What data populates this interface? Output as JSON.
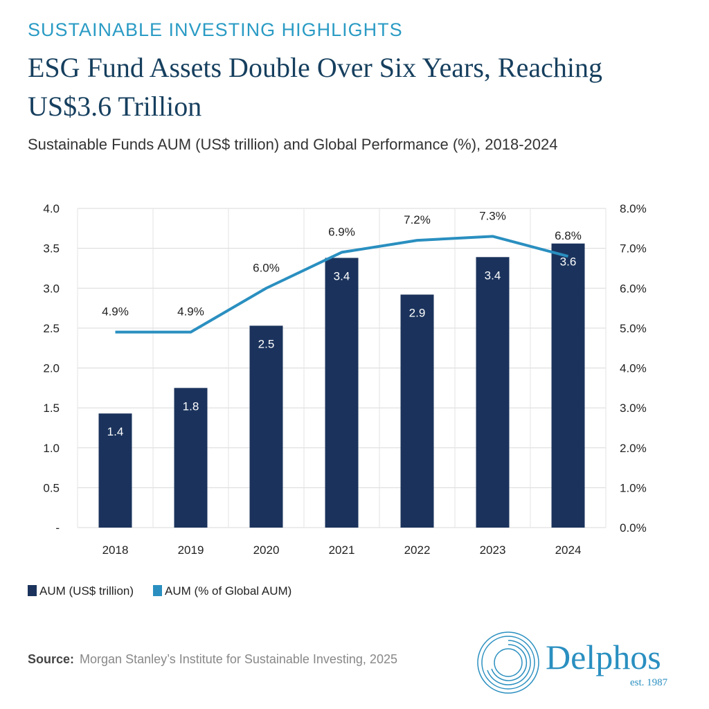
{
  "header": {
    "kicker": "SUSTAINABLE INVESTING HIGHLIGHTS",
    "title": "ESG Fund Assets Double Over Six Years, Reaching US$3.6 Trillion",
    "subtitle": "Sustainable Funds AUM (US$ trillion) and Global Performance (%), 2018-2024"
  },
  "chart_data": {
    "type": "bar+line",
    "categories": [
      "2018",
      "2019",
      "2020",
      "2021",
      "2022",
      "2023",
      "2024"
    ],
    "series": [
      {
        "name": "AUM (US$ trillion)",
        "type": "bar",
        "axis": "left",
        "color": "#1b335c",
        "values": [
          1.43,
          1.75,
          2.53,
          3.38,
          2.92,
          3.39,
          3.56
        ],
        "labels": [
          "1.4",
          "1.8",
          "2.5",
          "3.4",
          "2.9",
          "3.4",
          "3.6"
        ]
      },
      {
        "name": "AUM (% of Global AUM)",
        "type": "line",
        "axis": "right",
        "color": "#2a8fc0",
        "values": [
          4.9,
          4.9,
          6.0,
          6.9,
          7.2,
          7.3,
          6.8
        ],
        "labels": [
          "4.9%",
          "4.9%",
          "6.0%",
          "6.9%",
          "7.2%",
          "7.3%",
          "6.8%"
        ]
      }
    ],
    "y_left": {
      "range": [
        0,
        4
      ],
      "ticks": [
        "-",
        "0.5",
        "1.0",
        "1.5",
        "2.0",
        "2.5",
        "3.0",
        "3.5",
        "4.0"
      ]
    },
    "y_right": {
      "range": [
        0,
        8
      ],
      "ticks": [
        "0.0%",
        "1.0%",
        "2.0%",
        "3.0%",
        "4.0%",
        "5.0%",
        "6.0%",
        "7.0%",
        "8.0%"
      ]
    },
    "grid": true,
    "legend_position": "bottom-left"
  },
  "footer": {
    "source_label": "Source:",
    "source_text": "Morgan Stanley’s Institute for Sustainable Investing, 2025",
    "logo_name": "Delphos",
    "logo_est": "est. 1987"
  }
}
